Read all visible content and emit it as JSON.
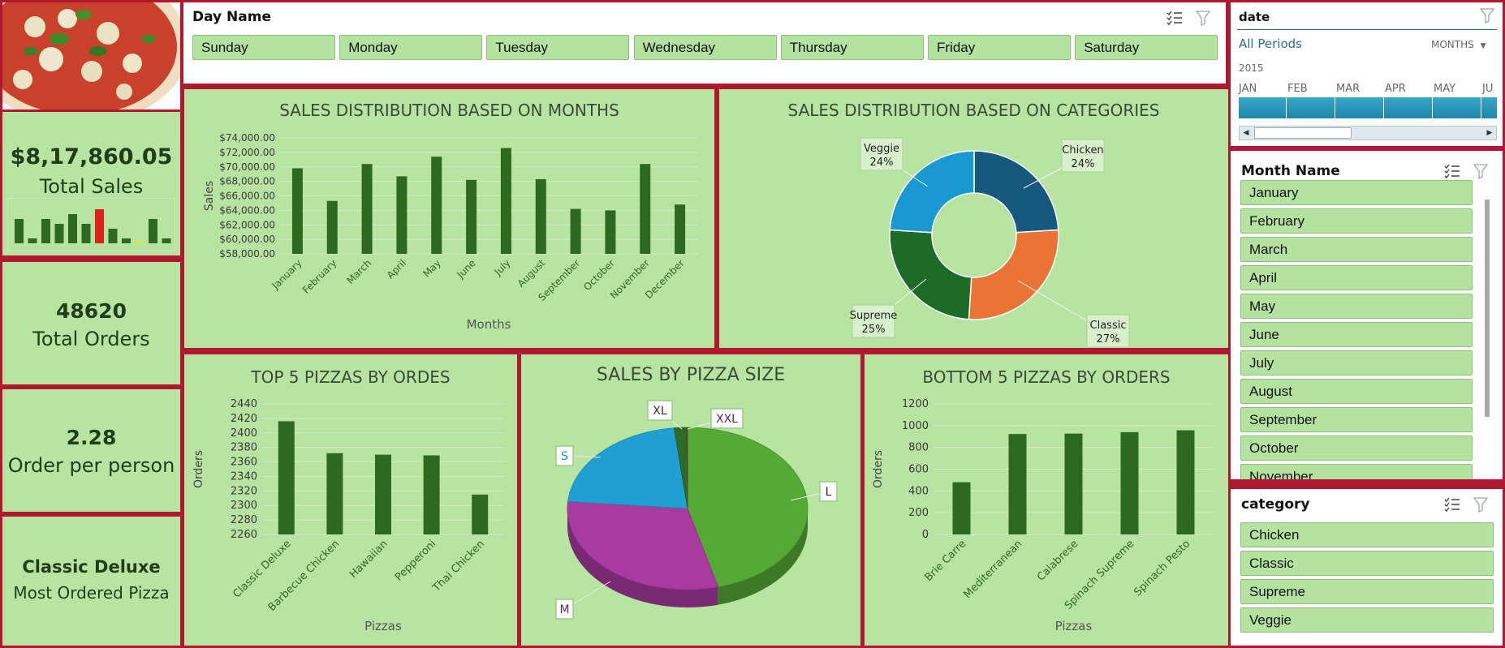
{
  "kpis": {
    "total_sales_value": "$8,17,860.05",
    "total_sales_label": "Total Sales",
    "total_orders_value": "48620",
    "total_orders_label": "Total Orders",
    "order_per_person_value": "2.28",
    "order_per_person_label": "Order per person",
    "most_ordered_value": "Classic Deluxe",
    "most_ordered_label": "Most Ordered Pizza"
  },
  "sparkline": {
    "values": [
      5,
      1,
      5,
      4,
      6,
      4,
      7,
      3,
      1,
      0.5,
      5,
      1
    ],
    "colors": [
      "#2d6a1f",
      "#2d6a1f",
      "#2d6a1f",
      "#2d6a1f",
      "#2d6a1f",
      "#2d6a1f",
      "#e0201a",
      "#2d6a1f",
      "#2d6a1f",
      "#d8e84a",
      "#2d6a1f",
      "#2d6a1f"
    ]
  },
  "day_slicer": {
    "title": "Day Name",
    "items": [
      "Sunday",
      "Monday",
      "Tuesday",
      "Wednesday",
      "Thursday",
      "Friday",
      "Saturday"
    ]
  },
  "date_slicer": {
    "title": "date",
    "all_periods": "All Periods",
    "level": "MONTHS",
    "year": "2015",
    "months": [
      "JAN",
      "FEB",
      "MAR",
      "APR",
      "MAY",
      "JU"
    ]
  },
  "month_slicer": {
    "title": "Month Name",
    "items": [
      "January",
      "February",
      "March",
      "April",
      "May",
      "June",
      "July",
      "August",
      "September",
      "October",
      "November"
    ]
  },
  "category_slicer": {
    "title": "category",
    "items": [
      "Chicken",
      "Classic",
      "Supreme",
      "Veggie"
    ]
  },
  "colors": {
    "bar": "#2d6a1f",
    "background": "#b7e4a1",
    "border": "#b01830"
  },
  "chart_data": [
    {
      "id": "months",
      "type": "bar",
      "title": "SALES DISTRIBUTION BASED ON MONTHS",
      "xlabel": "Months",
      "ylabel": "Sales",
      "categories": [
        "January",
        "February",
        "March",
        "April",
        "May",
        "June",
        "July",
        "August",
        "September",
        "October",
        "November",
        "December"
      ],
      "values": [
        69800,
        65300,
        70400,
        68700,
        71400,
        68200,
        72600,
        68300,
        64200,
        64000,
        70400,
        64800
      ],
      "ylim": [
        58000,
        74000
      ],
      "ticks": [
        "$58,000.00",
        "$60,000.00",
        "$62,000.00",
        "$64,000.00",
        "$66,000.00",
        "$68,000.00",
        "$70,000.00",
        "$72,000.00",
        "$74,000.00"
      ],
      "grid": true
    },
    {
      "id": "categories",
      "type": "pie",
      "title": "SALES DISTRIBUTION BASED ON CATEGORIES",
      "slices": [
        {
          "label": "Chicken",
          "pct": "24%",
          "value": 24,
          "color": "#16587e"
        },
        {
          "label": "Classic",
          "pct": "27%",
          "value": 27,
          "color": "#ea7435"
        },
        {
          "label": "Supreme",
          "pct": "25%",
          "value": 25,
          "color": "#1e6b28"
        },
        {
          "label": "Veggie",
          "pct": "24%",
          "value": 24,
          "color": "#1999d2"
        }
      ]
    },
    {
      "id": "top5",
      "type": "bar",
      "title": "TOP 5 PIZZAS BY ORDES",
      "xlabel": "Pizzas",
      "ylabel": "Orders",
      "categories": [
        "Classic Deluxe",
        "Barbecue Chicken",
        "Hawaiian",
        "Pepperoni",
        "Thai Chicken"
      ],
      "values": [
        2416,
        2372,
        2370,
        2369,
        2315
      ],
      "ylim": [
        2260,
        2440
      ],
      "ticks": [
        "2260",
        "2280",
        "2300",
        "2320",
        "2340",
        "2360",
        "2380",
        "2400",
        "2420",
        "2440"
      ],
      "grid": true
    },
    {
      "id": "size",
      "type": "pie",
      "title": "SALES BY PIZZA SIZE",
      "slices": [
        {
          "label": "L",
          "value": 45.9,
          "color": "#55aa35"
        },
        {
          "label": "M",
          "value": 30.5,
          "color": "#a93aa0"
        },
        {
          "label": "S",
          "value": 21.8,
          "color": "#1ea0d4"
        },
        {
          "label": "XL",
          "value": 1.7,
          "color": "#2e6a2a"
        },
        {
          "label": "XXL",
          "value": 0.1,
          "color": "#7a4a2a"
        }
      ]
    },
    {
      "id": "bottom5",
      "type": "bar",
      "title": "BOTTOM 5 PIZZAS BY ORDERS",
      "xlabel": "Pizzas",
      "ylabel": "Orders",
      "categories": [
        "Brie Carre",
        "Mediterranean",
        "Calabrese",
        "Spinach Supreme",
        "Spinach Pesto"
      ],
      "values": [
        480,
        923,
        927,
        940,
        957
      ],
      "ylim": [
        0,
        1200
      ],
      "ticks": [
        "0",
        "200",
        "400",
        "600",
        "800",
        "1000",
        "1200"
      ],
      "grid": true
    }
  ]
}
